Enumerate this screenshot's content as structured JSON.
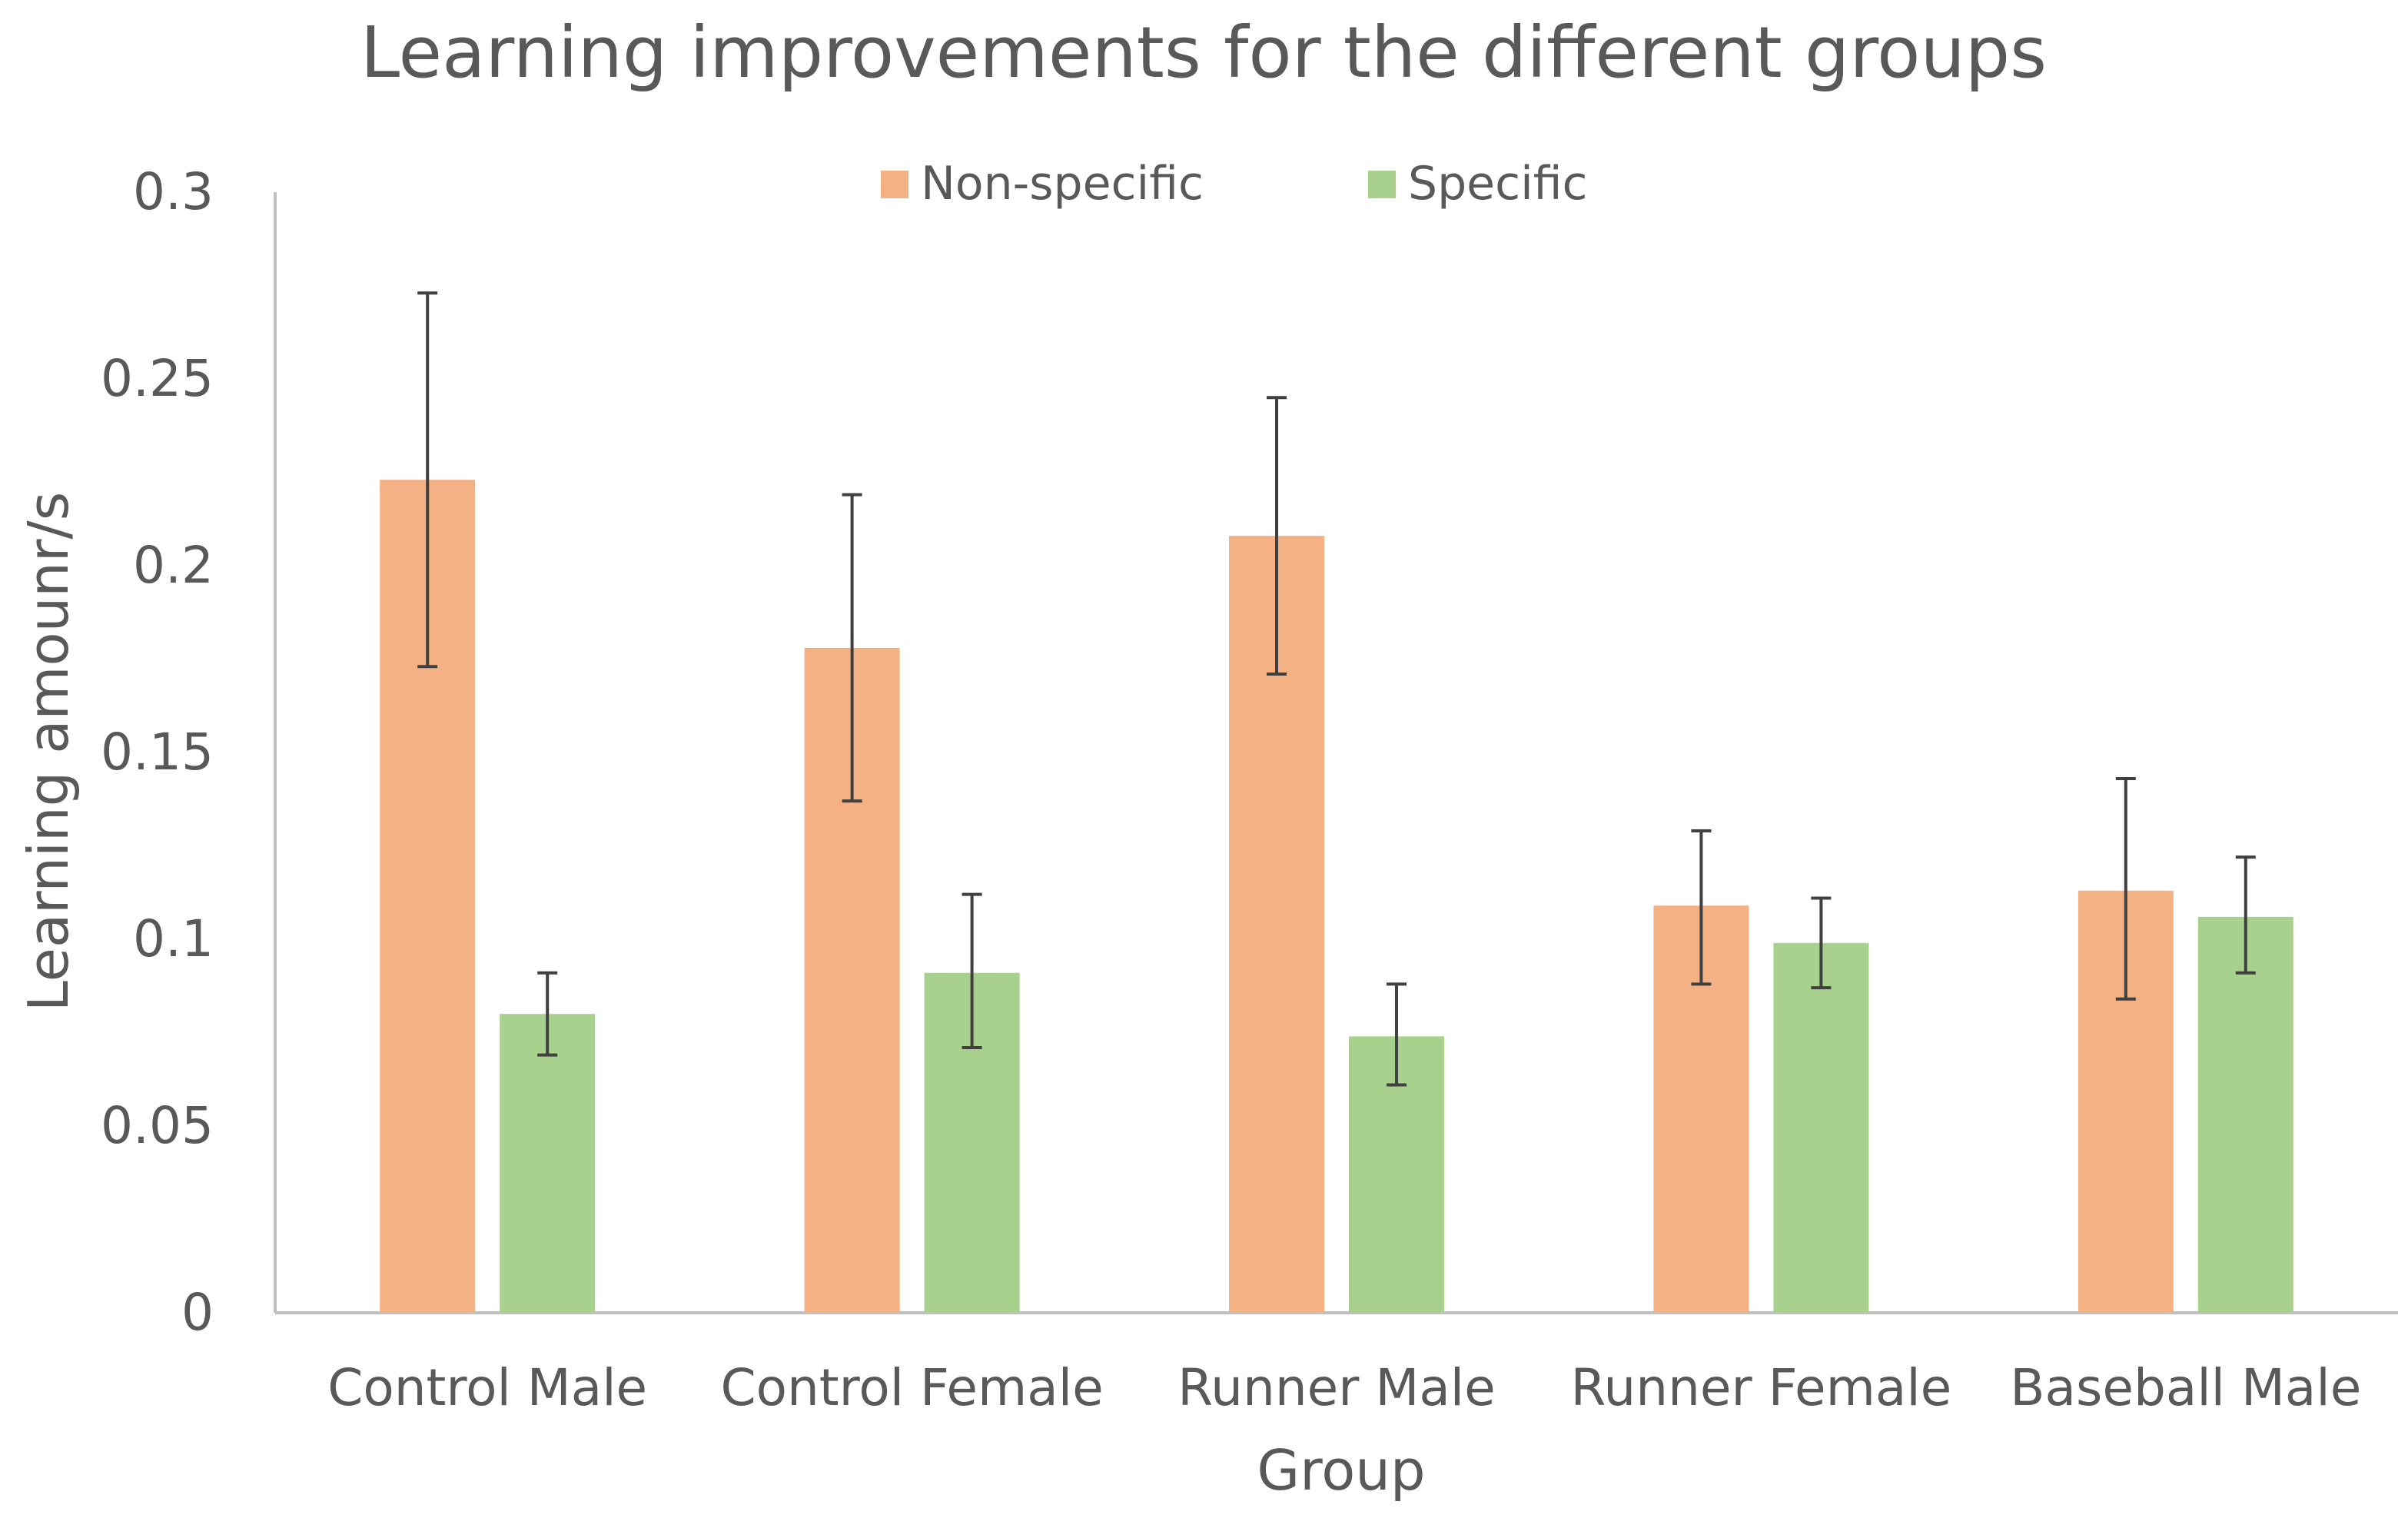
{
  "chart_data": {
    "type": "bar",
    "title": "Learning improvements for the different groups",
    "xlabel": "Group",
    "ylabel": "Learning amounr/s",
    "ylim": [
      0,
      0.3
    ],
    "yticks": [
      0,
      0.05,
      0.1,
      0.15,
      0.2,
      0.25,
      0.3
    ],
    "ytick_labels": [
      "0",
      "0.05",
      "0.1",
      "0.15",
      "0.2",
      "0.25",
      "0.3"
    ],
    "grid": false,
    "legend_position": "top-center",
    "categories": [
      "Control Male",
      "Control Female",
      "Runner Male",
      "Runner Female",
      "Baseball Male"
    ],
    "series": [
      {
        "name": "Non-specific",
        "color": "#F4B183",
        "values": [
          0.223,
          0.178,
          0.208,
          0.109,
          0.113
        ],
        "error_low": [
          0.173,
          0.137,
          0.171,
          0.088,
          0.084
        ],
        "error_high": [
          0.273,
          0.219,
          0.245,
          0.129,
          0.143
        ]
      },
      {
        "name": "Specific",
        "color": "#A9D18E",
        "values": [
          0.08,
          0.091,
          0.074,
          0.099,
          0.106
        ],
        "error_low": [
          0.069,
          0.071,
          0.061,
          0.087,
          0.091
        ],
        "error_high": [
          0.091,
          0.112,
          0.088,
          0.111,
          0.122
        ]
      }
    ],
    "axis_color": "#BFBFBF",
    "error_bar_color": "#404040"
  }
}
